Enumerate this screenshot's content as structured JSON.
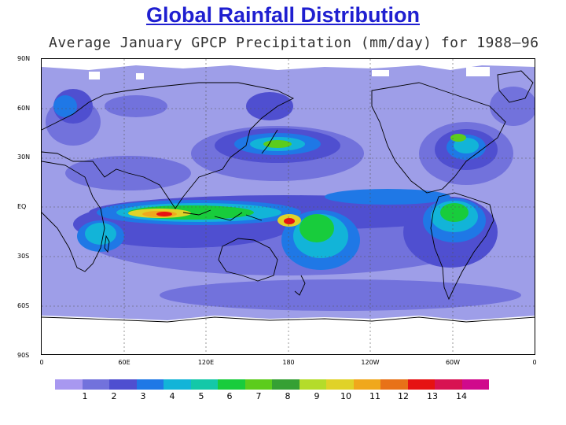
{
  "slide": {
    "title": "Global Rainfall Distribution"
  },
  "map": {
    "subtitle": "Average January GPCP Precipitation (mm/day) for 1988–96",
    "lat_labels": [
      "90N",
      "60N",
      "30N",
      "EQ",
      "30S",
      "60S",
      "90S"
    ],
    "lon_labels": [
      "0",
      "60E",
      "120E",
      "180",
      "120W",
      "60W",
      "0"
    ],
    "background_color": "#9e9ee8",
    "land_outline_color": "#000000"
  },
  "colorbar": {
    "colors": [
      "#a898f0",
      "#7272dc",
      "#4f4fd0",
      "#1f78e6",
      "#12b4d8",
      "#14c8a8",
      "#18cc3c",
      "#5ccc1c",
      "#36a034",
      "#b4dc2a",
      "#e0d228",
      "#f0a81c",
      "#e87218",
      "#e61212",
      "#d81252",
      "#d00a8c"
    ],
    "labels": [
      "1",
      "2",
      "3",
      "4",
      "5",
      "6",
      "7",
      "8",
      "9",
      "10",
      "11",
      "12",
      "13",
      "14"
    ]
  }
}
